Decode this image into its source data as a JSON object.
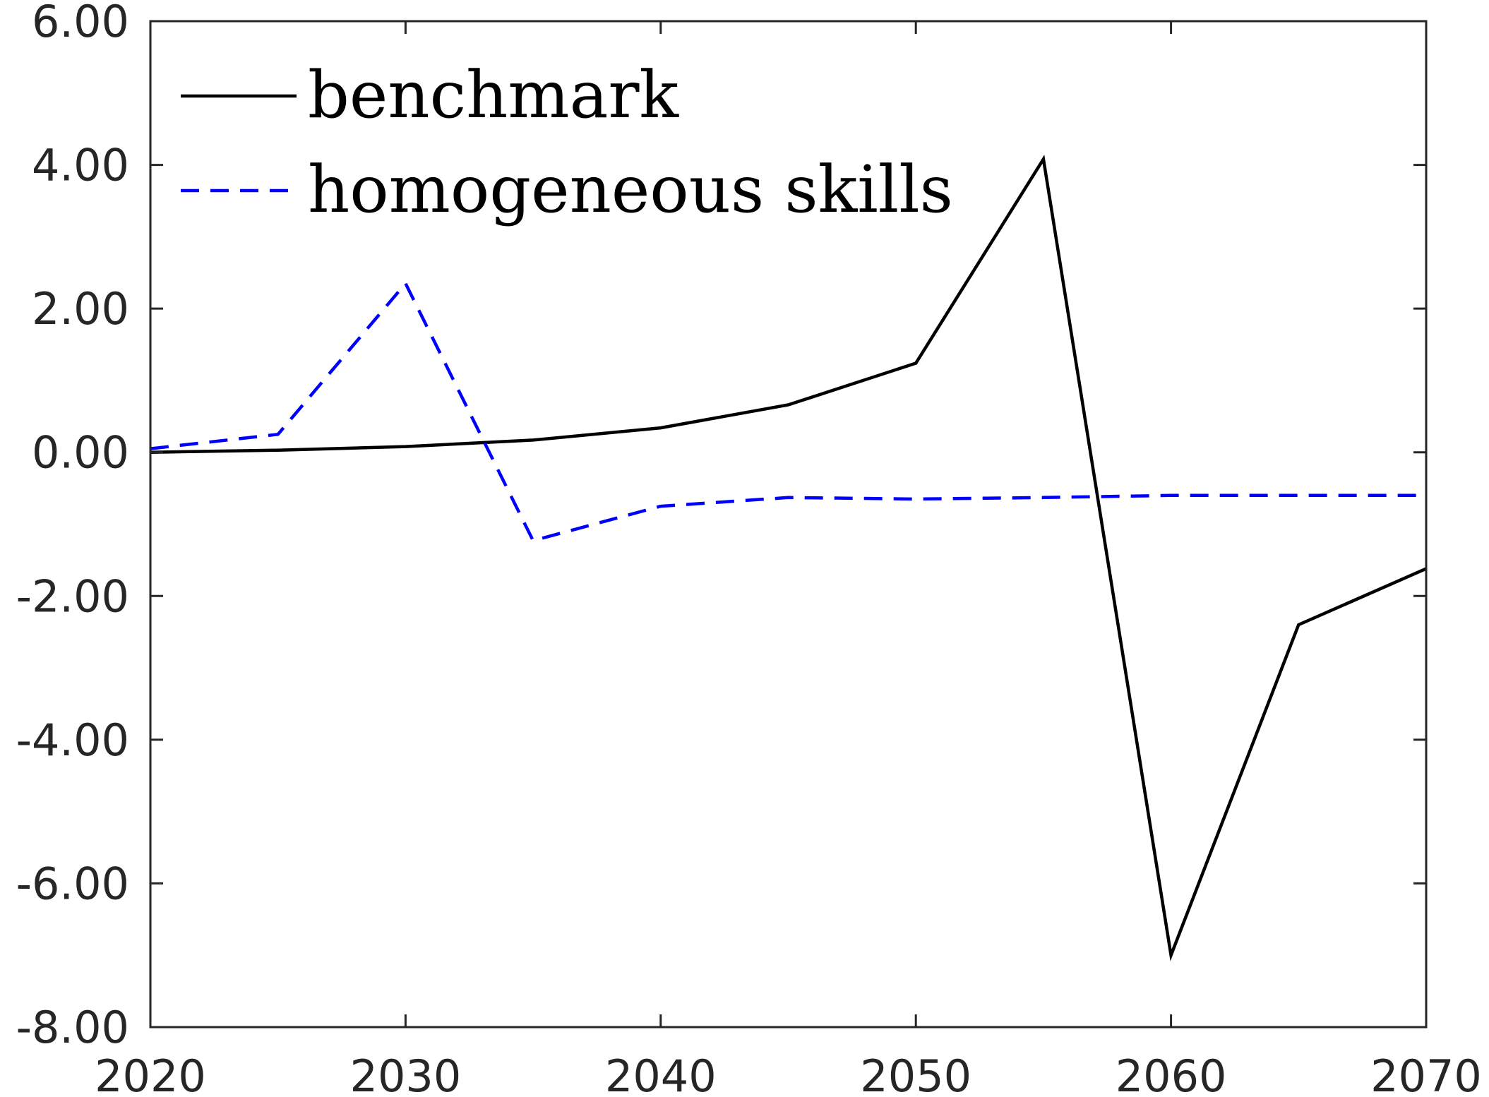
{
  "chart_data": {
    "type": "line",
    "title": "",
    "xlabel": "",
    "ylabel": "",
    "xlim": [
      2020,
      2070
    ],
    "ylim": [
      -8,
      6
    ],
    "x_ticks": [
      2020,
      2030,
      2040,
      2050,
      2060,
      2070
    ],
    "x_tick_labels": [
      "2020",
      "2030",
      "2040",
      "2050",
      "2060",
      "2070"
    ],
    "y_ticks": [
      -8,
      -6,
      -4,
      -2,
      0,
      2,
      4,
      6
    ],
    "y_tick_labels": [
      "-8.00",
      "-6.00",
      "-4.00",
      "-2.00",
      "0.00",
      "2.00",
      "4.00",
      "6.00"
    ],
    "grid": false,
    "legend_position": "top-left",
    "x": [
      2020,
      2025,
      2030,
      2035,
      2040,
      2045,
      2050,
      2055,
      2060,
      2065,
      2070
    ],
    "series": [
      {
        "name": "benchmark",
        "color": "#000000",
        "style": "solid",
        "values": [
          0.0,
          0.03,
          0.08,
          0.17,
          0.34,
          0.66,
          1.24,
          4.08,
          -7.0,
          -2.4,
          -1.62
        ]
      },
      {
        "name": "homogeneous skills",
        "color": "#0000ff",
        "style": "dashed",
        "values": [
          0.05,
          0.25,
          2.35,
          -1.23,
          -0.75,
          -0.63,
          -0.65,
          -0.63,
          -0.6,
          -0.6,
          -0.6
        ]
      }
    ]
  }
}
